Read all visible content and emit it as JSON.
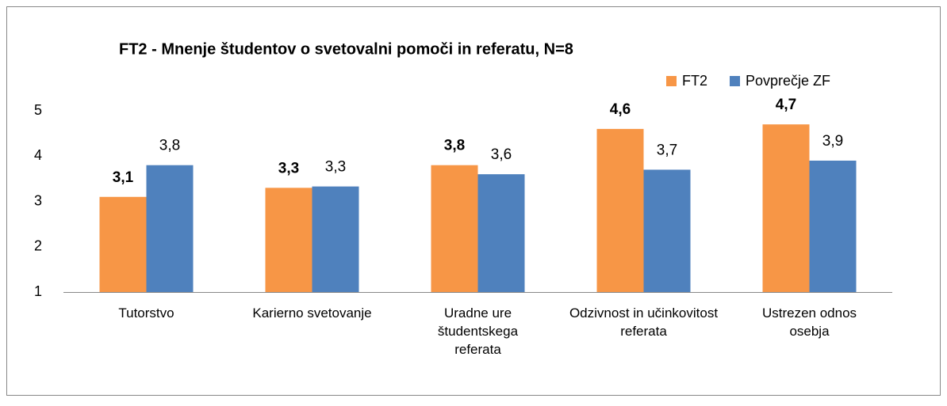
{
  "chart_data": {
    "type": "bar",
    "title": "FT2 - Mnenje študentov o svetovalni pomoči in referatu, N=8",
    "categories": [
      "Tutorstvo",
      "Karierno svetovanje",
      "Uradne ure študentskega referata",
      "Odzivnost in učinkovitost referata",
      "Ustrezen odnos osebja"
    ],
    "series": [
      {
        "name": "FT2",
        "color": "#f79646",
        "values": [
          3.1,
          3.3,
          3.8,
          4.6,
          4.7
        ],
        "value_labels": [
          "3,1",
          "3,3",
          "3,8",
          "4,6",
          "4,7"
        ]
      },
      {
        "name": "Povprečje ZF",
        "color": "#4f81bd",
        "values": [
          3.8,
          3.33,
          3.6,
          3.7,
          3.9
        ],
        "value_labels": [
          "3,8",
          "3,3",
          "3,6",
          "3,7",
          "3,9"
        ]
      }
    ],
    "ylim": [
      1,
      5
    ],
    "yticks": [
      1,
      2,
      3,
      4,
      5
    ],
    "grid": false,
    "legend": "top-right"
  }
}
